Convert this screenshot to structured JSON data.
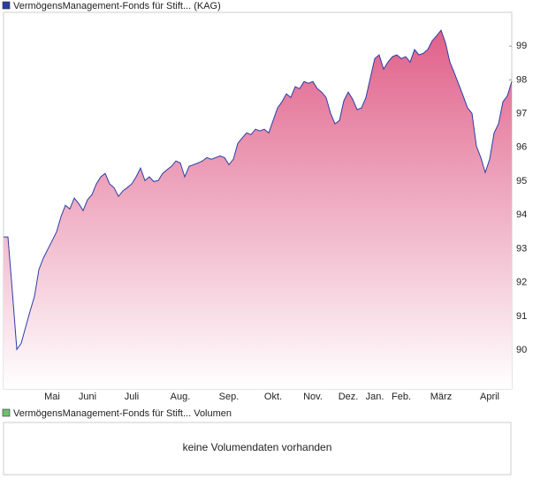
{
  "chart_data": {
    "type": "area",
    "categories": [
      null,
      null,
      null,
      null,
      null,
      null,
      null,
      null,
      null,
      null,
      null,
      "Mai",
      null,
      null,
      null,
      null,
      null,
      null,
      null,
      "Juni",
      null,
      null,
      null,
      null,
      null,
      null,
      null,
      null,
      null,
      "Juli",
      null,
      null,
      null,
      null,
      null,
      null,
      null,
      null,
      null,
      null,
      "Aug.",
      null,
      null,
      null,
      null,
      null,
      null,
      null,
      null,
      null,
      null,
      "Sep.",
      null,
      null,
      null,
      null,
      null,
      null,
      null,
      null,
      null,
      "Okt.",
      null,
      null,
      null,
      null,
      null,
      null,
      null,
      null,
      "Nov.",
      null,
      null,
      null,
      null,
      null,
      null,
      null,
      "Dez.",
      null,
      null,
      null,
      null,
      null,
      "Jan.",
      null,
      null,
      null,
      null,
      null,
      "Feb.",
      null,
      null,
      null,
      null,
      null,
      null,
      null,
      null,
      "März",
      null,
      null,
      null,
      null,
      null,
      null,
      null,
      null,
      null,
      null,
      "April",
      null,
      null,
      null,
      null,
      null
    ],
    "series": [
      {
        "name": "VermögensManagement-Fonds für Stift... (KAG)",
        "color": "#2b3da6",
        "fill": "#e0608a",
        "values": [
          93.35,
          93.35,
          91.72,
          90.02,
          90.2,
          90.68,
          91.15,
          91.59,
          92.38,
          92.72,
          92.98,
          93.24,
          93.5,
          93.95,
          94.29,
          94.18,
          94.5,
          94.34,
          94.13,
          94.45,
          94.6,
          94.92,
          95.13,
          95.23,
          94.92,
          94.81,
          94.55,
          94.71,
          94.81,
          94.92,
          95.13,
          95.39,
          95.02,
          95.13,
          94.99,
          95.02,
          95.23,
          95.34,
          95.44,
          95.6,
          95.54,
          95.13,
          95.44,
          95.49,
          95.54,
          95.6,
          95.7,
          95.65,
          95.7,
          95.75,
          95.7,
          95.49,
          95.65,
          96.12,
          96.28,
          96.43,
          96.38,
          96.54,
          96.49,
          96.54,
          96.43,
          96.8,
          97.17,
          97.35,
          97.59,
          97.48,
          97.8,
          97.74,
          97.95,
          97.9,
          97.95,
          97.74,
          97.64,
          97.48,
          97.01,
          96.7,
          96.8,
          97.38,
          97.64,
          97.43,
          97.12,
          97.17,
          97.48,
          98.06,
          98.63,
          98.74,
          98.32,
          98.53,
          98.69,
          98.74,
          98.63,
          98.69,
          98.53,
          98.9,
          98.74,
          98.79,
          98.9,
          99.16,
          99.31,
          99.47,
          99.1,
          98.53,
          98.21,
          97.87,
          97.53,
          97.17,
          97.01,
          96.04,
          95.7,
          95.26,
          95.65,
          96.43,
          96.7,
          97.35,
          97.53,
          97.95
        ]
      }
    ],
    "ylim": [
      88.85,
      100.0
    ],
    "yticks": [
      90,
      91,
      92,
      93,
      94,
      95,
      96,
      97,
      98,
      99
    ],
    "grid": false,
    "volume_panel": {
      "legend": "VermögensManagement-Fonds für Stift... Volumen",
      "legend_color": "#6cc070",
      "message": "keine Volumendaten vorhanden"
    }
  }
}
